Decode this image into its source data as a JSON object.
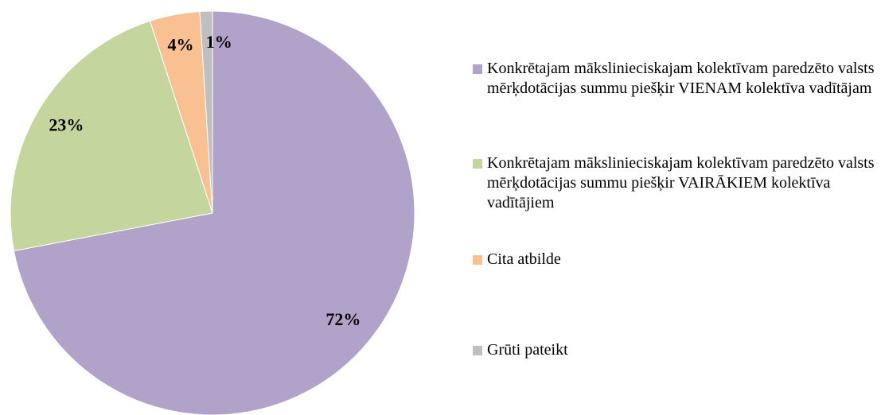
{
  "chart_data": {
    "type": "pie",
    "categories": [
      "Konkrētajam mākslinieciskajam kolektīvam paredzēto valsts mērķdotācijas summu piešķir VIENAM kolektīva vadītājam",
      "Konkrētajam mākslinieciskajam kolektīvam paredzēto valsts mērķdotācijas summu piešķir VAIRĀKIEM kolektīva vadītājiem",
      "Cita atbilde",
      "Grūti pateikt"
    ],
    "values": [
      72,
      23,
      4,
      1
    ],
    "value_labels": [
      "72%",
      "23%",
      "4%",
      "1%"
    ],
    "colors": [
      "#b0a2c9",
      "#c4d69d",
      "#f9c092",
      "#bfbfbf"
    ],
    "start_angle": 0,
    "direction": "clockwise",
    "legend": "right"
  }
}
